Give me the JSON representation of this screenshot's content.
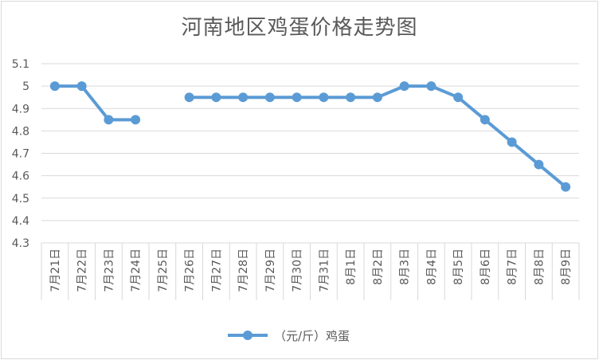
{
  "chart_data": {
    "type": "line",
    "title": "河南地区鸡蛋价格走势图",
    "categories": [
      "7月21日",
      "7月22日",
      "7月23日",
      "7月24日",
      "7月25日",
      "7月26日",
      "7月27日",
      "7月28日",
      "7月29日",
      "7月30日",
      "7月31日",
      "8月1日",
      "8月2日",
      "8月3日",
      "8月4日",
      "8月5日",
      "8月6日",
      "8月7日",
      "8月8日",
      "8月9日"
    ],
    "series": [
      {
        "name": "（元/斤）鸡蛋",
        "values": [
          5.0,
          5.0,
          4.85,
          4.85,
          null,
          4.95,
          4.95,
          4.95,
          4.95,
          4.95,
          4.95,
          4.95,
          4.95,
          5.0,
          5.0,
          4.95,
          4.85,
          4.75,
          4.65,
          4.55
        ]
      }
    ],
    "y_ticks": [
      "5.1",
      "5",
      "4.9",
      "4.8",
      "4.7",
      "4.6",
      "4.5",
      "4.4",
      "4.3"
    ],
    "ylim": [
      4.3,
      5.1
    ],
    "grid": true,
    "legend_position": "bottom",
    "colors": {
      "series": "#5b9bd5",
      "grid": "#d9d9d9",
      "text": "#595959"
    }
  }
}
